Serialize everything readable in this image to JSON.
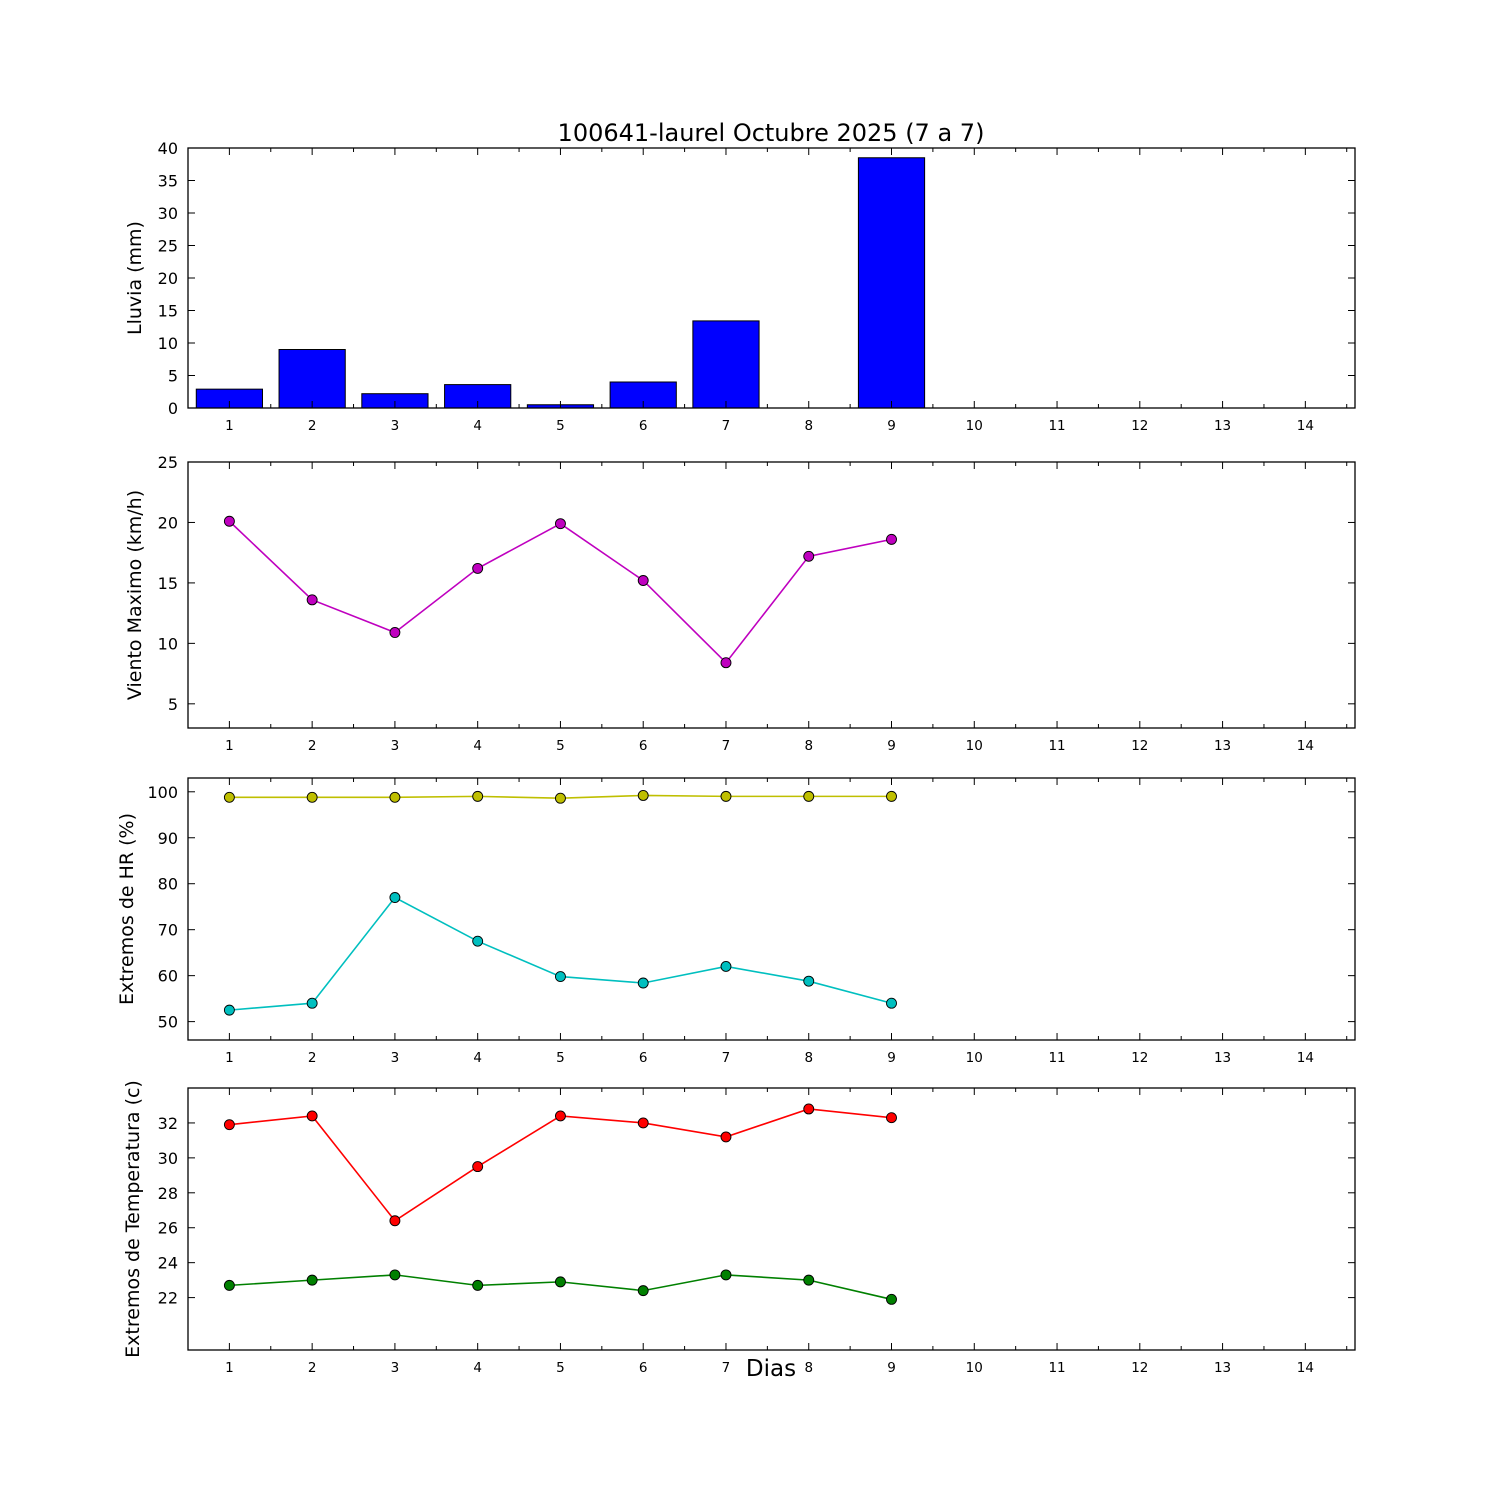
{
  "title": "100641-laurel Octubre 2025  (7 a 7)",
  "xlabel": "Dias",
  "axes": {
    "xlim": [
      0.5,
      14.6
    ],
    "x_major_ticks": [
      1,
      2,
      3,
      4,
      5,
      6,
      7,
      8,
      9,
      10,
      11,
      12,
      13,
      14
    ],
    "x_minor_step": 0.5,
    "frame_color": "#000000",
    "background": "#ffffff"
  },
  "chart_data": [
    {
      "id": "lluvia",
      "type": "bar",
      "ylabel": "Lluvia (mm)",
      "categories": [
        1,
        2,
        3,
        4,
        5,
        6,
        7,
        8,
        9
      ],
      "values": [
        2.9,
        9.0,
        2.2,
        3.6,
        0.5,
        4.0,
        13.4,
        0.0,
        38.5
      ],
      "color": "#0000ff",
      "ylim": [
        0,
        40
      ],
      "yticks": [
        0,
        5,
        10,
        15,
        20,
        25,
        30,
        35,
        40
      ],
      "grid": false,
      "legend": "none"
    },
    {
      "id": "viento",
      "type": "line",
      "ylabel": "Viento Maximo (km/h)",
      "x": [
        1,
        2,
        3,
        4,
        5,
        6,
        7,
        8,
        9
      ],
      "series": [
        {
          "name": "viento-maximo",
          "color": "#bf00bf",
          "values": [
            20.1,
            13.6,
            10.9,
            16.2,
            19.9,
            15.2,
            8.4,
            17.2,
            18.6
          ]
        }
      ],
      "ylim": [
        3,
        25
      ],
      "yticks": [
        5,
        10,
        15,
        20,
        25
      ],
      "grid": false,
      "legend": "none"
    },
    {
      "id": "hr",
      "type": "line",
      "ylabel": "Extremos de HR (%)",
      "x": [
        1,
        2,
        3,
        4,
        5,
        6,
        7,
        8,
        9
      ],
      "series": [
        {
          "name": "hr-maxima",
          "color": "#bfbf00",
          "values": [
            98.8,
            98.8,
            98.8,
            99.0,
            98.6,
            99.2,
            99.0,
            99.0,
            99.0
          ]
        },
        {
          "name": "hr-minima",
          "color": "#00bfbf",
          "values": [
            52.5,
            54.0,
            77.0,
            67.5,
            59.8,
            58.4,
            62.0,
            58.8,
            54.0
          ]
        }
      ],
      "ylim": [
        46,
        103
      ],
      "yticks": [
        50,
        60,
        70,
        80,
        90,
        100
      ],
      "grid": false,
      "legend": "none"
    },
    {
      "id": "temperatura",
      "type": "line",
      "ylabel": "Extremos de Temperatura (c)",
      "x": [
        1,
        2,
        3,
        4,
        5,
        6,
        7,
        8,
        9
      ],
      "series": [
        {
          "name": "temperatura-maxima",
          "color": "#ff0000",
          "values": [
            31.9,
            32.4,
            26.4,
            29.5,
            32.4,
            32.0,
            31.2,
            32.8,
            32.3
          ]
        },
        {
          "name": "temperatura-minima",
          "color": "#008000",
          "values": [
            22.7,
            23.0,
            23.3,
            22.7,
            22.9,
            22.4,
            23.3,
            23.0,
            21.9
          ]
        }
      ],
      "ylim": [
        19,
        34
      ],
      "yticks": [
        22,
        24,
        26,
        28,
        30,
        32
      ],
      "grid": false,
      "legend": "none"
    }
  ]
}
